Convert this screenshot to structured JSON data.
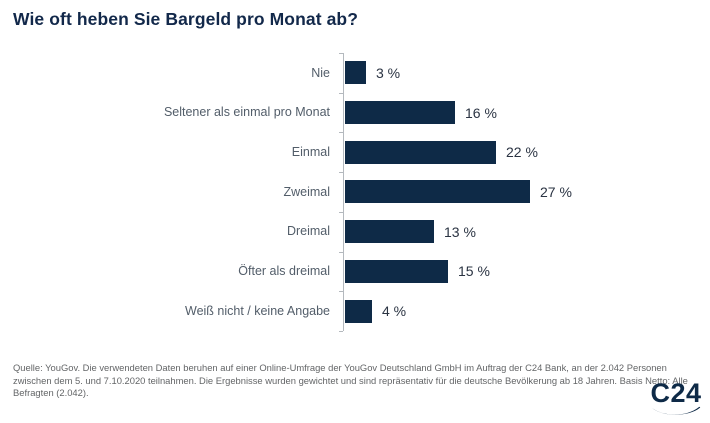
{
  "title": "Wie oft heben Sie Bargeld pro Monat ab?",
  "chart_data": {
    "type": "bar",
    "orientation": "horizontal",
    "title": "Wie oft heben Sie Bargeld pro Monat ab?",
    "categories": [
      "Nie",
      "Seltener als einmal pro Monat",
      "Einmal",
      "Zweimal",
      "Dreimal",
      "Öfter als dreimal",
      "Weiß nicht / keine Angabe"
    ],
    "values": [
      3,
      16,
      22,
      27,
      13,
      15,
      4
    ],
    "value_labels": [
      "3 %",
      "16 %",
      "22 %",
      "27 %",
      "13 %",
      "15 %",
      "4 %"
    ],
    "unit": "%",
    "xlim": [
      0,
      30
    ],
    "grid": false,
    "legend": false,
    "bar_color": "#0e2a47",
    "axis_color": "#b4b9be"
  },
  "footer": {
    "source_text": "Quelle: YouGov. Die verwendeten Daten beruhen auf einer Online-Umfrage der YouGov Deutschland GmbH im Auftrag der C24 Bank, an der 2.042 Personen zwischen dem 5. und 7.10.2020 teilnahmen. Die Ergebnisse wurden gewichtet und sind repräsentativ für die deutsche Bevölkerung ab 18 Jahren. Basis Netto: Alle Befragten (2.042)."
  },
  "logo": {
    "text": "C24"
  },
  "colors": {
    "navy": "#0e2a47",
    "title_text": "#12284a",
    "category_label": "#525d69",
    "value_label": "#2a3342",
    "axis": "#b4b9be",
    "footer_text": "#636567",
    "background": "#ffffff"
  }
}
